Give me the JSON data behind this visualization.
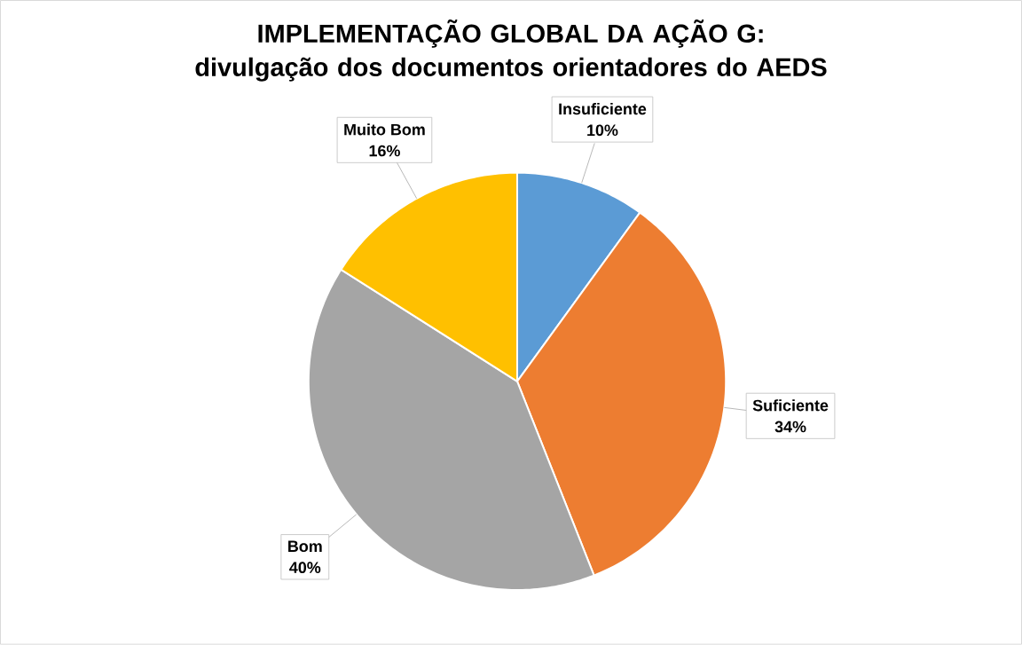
{
  "chart_data": {
    "type": "pie",
    "title": "IMPLEMENTAÇÃO GLOBAL DA AÇÃO G: divulgação dos documentos orientadores do AEDS",
    "categories": [
      "Insuficiente",
      "Suficiente",
      "Bom",
      "Muito Bom"
    ],
    "values": [
      10,
      34,
      40,
      16
    ],
    "value_labels": [
      "10%",
      "34%",
      "40%",
      "16%"
    ],
    "colors": [
      "#5b9bd5",
      "#ed7d31",
      "#a5a5a5",
      "#ffc000"
    ]
  }
}
